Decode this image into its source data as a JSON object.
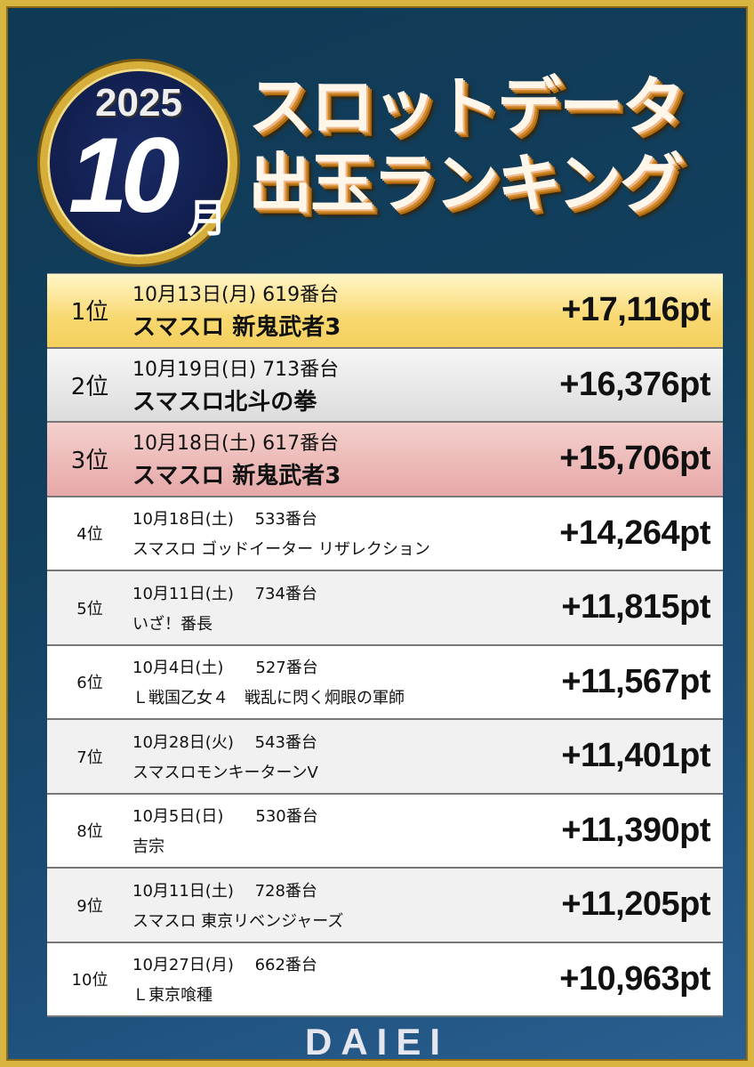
{
  "header": {
    "year": "2025",
    "month": "10",
    "month_suffix": "月",
    "title_line1": "スロットデータ",
    "title_line2": "出玉ランキング"
  },
  "rows": [
    {
      "rank": "1位",
      "date": "10月13日(月) 619番台",
      "machine": "スマスロ 新鬼武者3",
      "points": "+17,116pt"
    },
    {
      "rank": "2位",
      "date": "10月19日(日) 713番台",
      "machine": "スマスロ北斗の拳",
      "points": "+16,376pt"
    },
    {
      "rank": "3位",
      "date": "10月18日(土) 617番台",
      "machine": "スマスロ 新鬼武者3",
      "points": "+15,706pt"
    },
    {
      "rank": "4位",
      "date": "10月18日(土)　 533番台",
      "machine": "スマスロ ゴッドイーター リザレクション",
      "points": "+14,264pt"
    },
    {
      "rank": "5位",
      "date": "10月11日(土)　 734番台",
      "machine": "いざ！番長",
      "points": "+11,815pt"
    },
    {
      "rank": "6位",
      "date": "10月4日(土)　　527番台",
      "machine": "Ｌ戦国乙女４　戦乱に閃く炯眼の軍師",
      "points": "+11,567pt"
    },
    {
      "rank": "7位",
      "date": "10月28日(火)　 543番台",
      "machine": "スマスロモンキーターンV",
      "points": "+11,401pt"
    },
    {
      "rank": "8位",
      "date": "10月5日(日)　　530番台",
      "machine": "吉宗",
      "points": "+11,390pt"
    },
    {
      "rank": "9位",
      "date": "10月11日(土)　 728番台",
      "machine": "スマスロ 東京リベンジャーズ",
      "points": "+11,205pt"
    },
    {
      "rank": "10位",
      "date": "10月27日(月)　 662番台",
      "machine": "Ｌ東京喰種",
      "points": "+10,963pt"
    }
  ],
  "footer": {
    "logo": "DAIEI"
  },
  "colors": {
    "frame": "#d8b440",
    "background": "#123f5e",
    "first": "#f8d870",
    "second": "#dcdcdc",
    "third": "#e6a8a8"
  }
}
